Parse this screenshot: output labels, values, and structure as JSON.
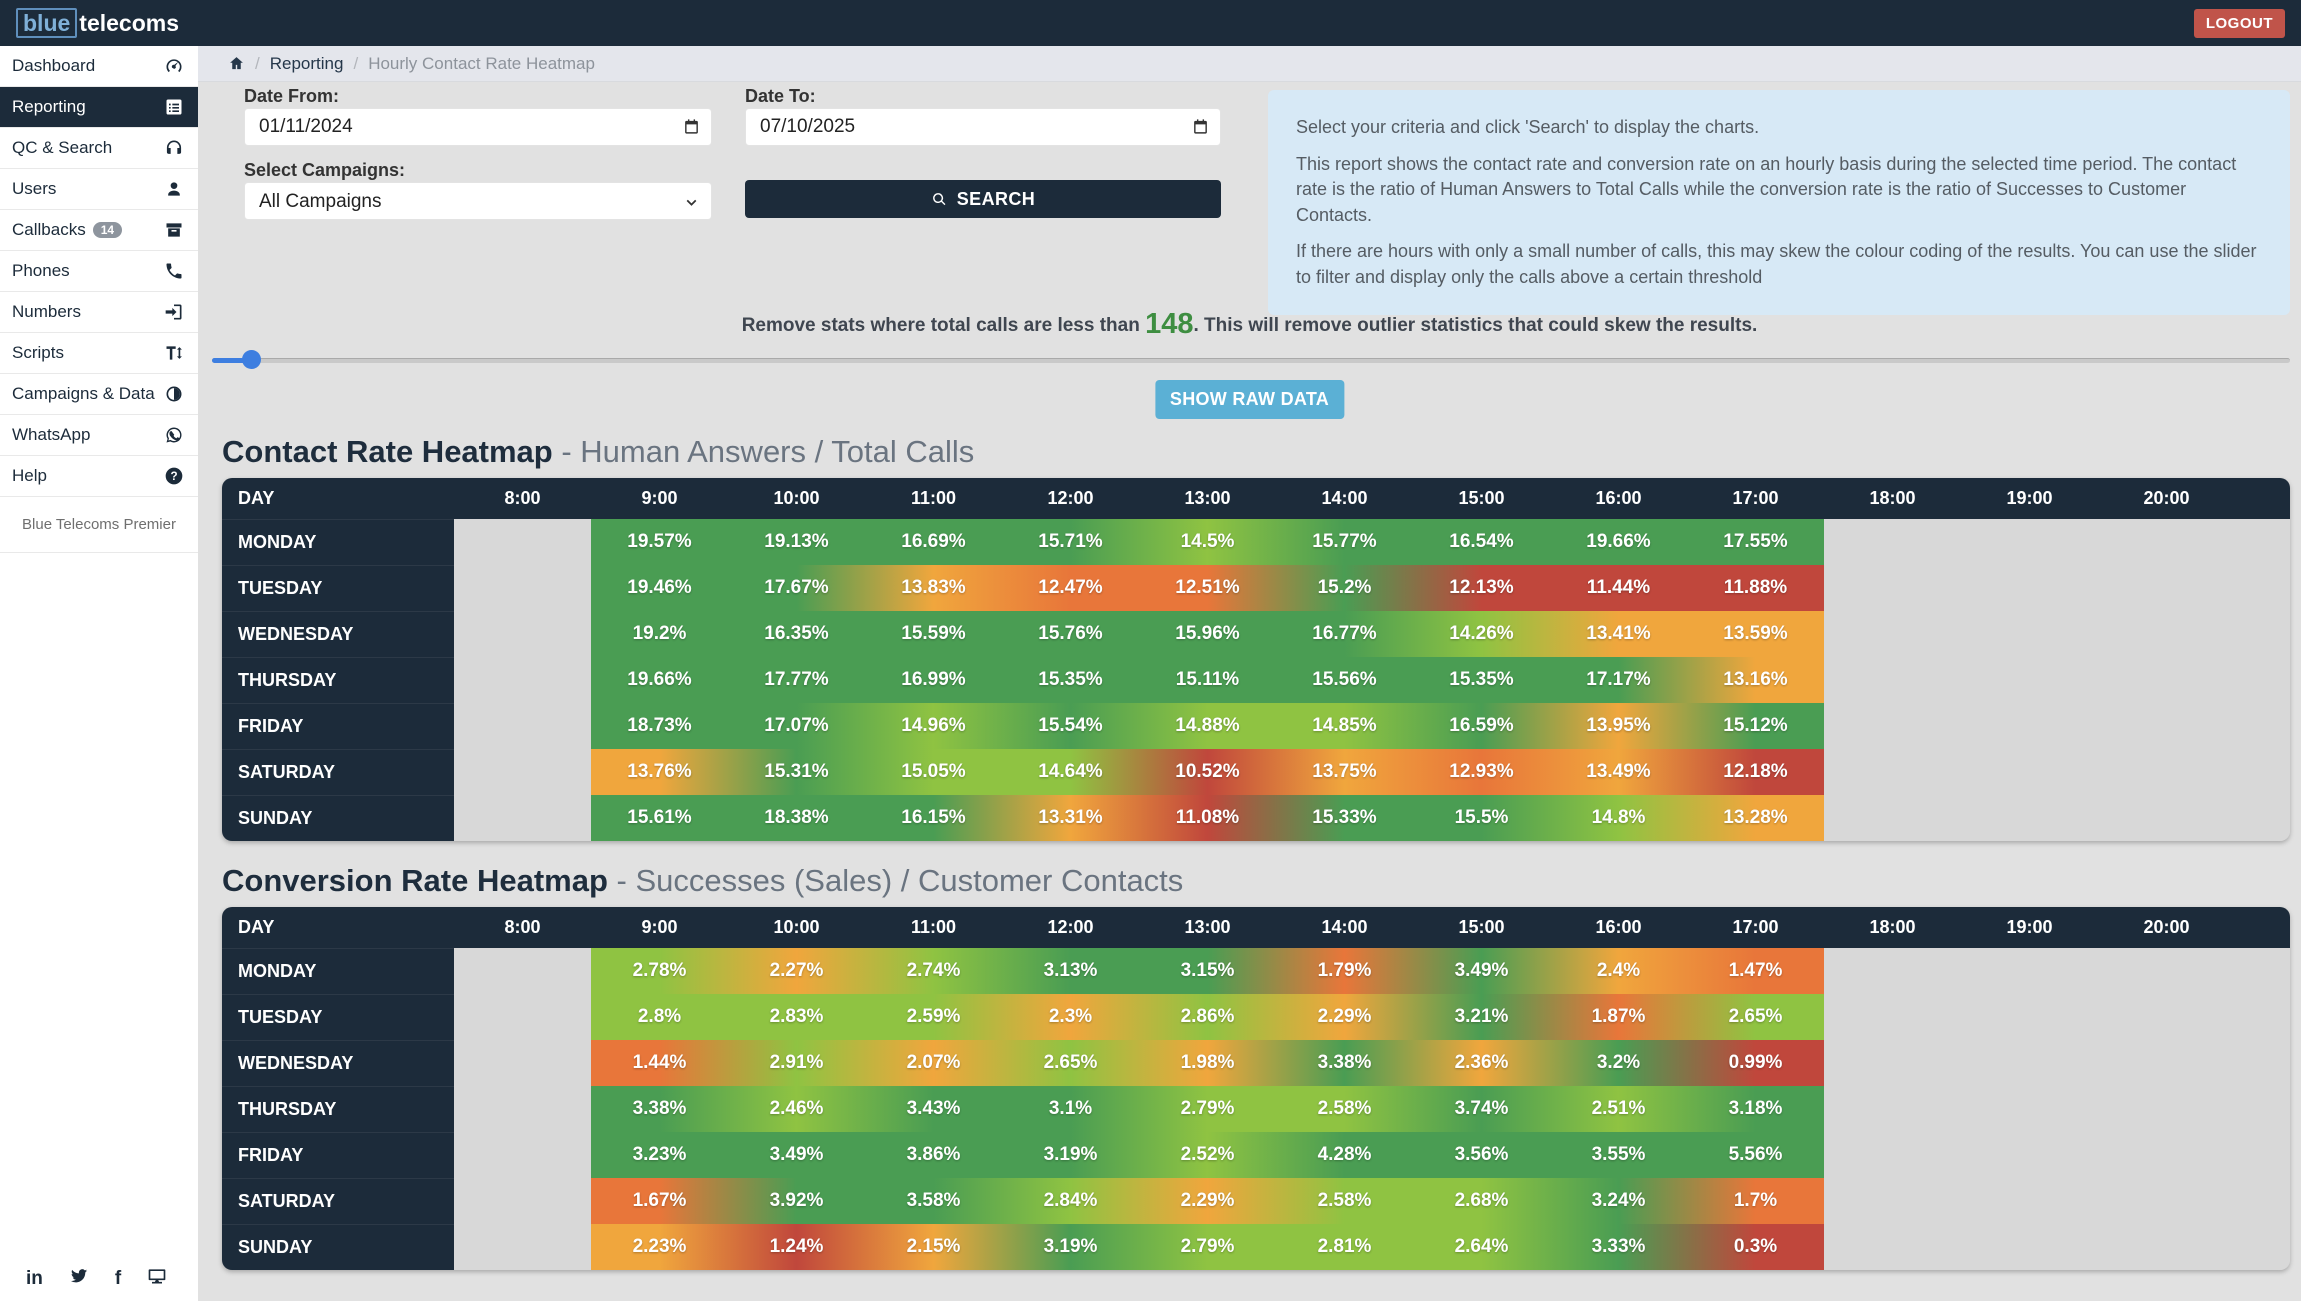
{
  "navbar": {
    "logo_blue": "blue",
    "logo_rest": "telecoms",
    "logout_label": "LOGOUT"
  },
  "sidebar": {
    "items": [
      {
        "label": "Dashboard",
        "icon": "speedometer"
      },
      {
        "label": "Reporting",
        "icon": "report-list",
        "active": true
      },
      {
        "label": "QC & Search",
        "icon": "headphones"
      },
      {
        "label": "Users",
        "icon": "user"
      },
      {
        "label": "Callbacks",
        "icon": "archive",
        "badge": "14"
      },
      {
        "label": "Phones",
        "icon": "phone"
      },
      {
        "label": "Numbers",
        "icon": "sign-in"
      },
      {
        "label": "Scripts",
        "icon": "text-height"
      },
      {
        "label": "Campaigns & Data",
        "icon": "contrast"
      },
      {
        "label": "WhatsApp",
        "icon": "whatsapp"
      },
      {
        "label": "Help",
        "icon": "question"
      }
    ],
    "footer_text": "Blue Telecoms Premier",
    "social": [
      "linkedin",
      "twitter",
      "facebook",
      "desktop"
    ]
  },
  "breadcrumb": {
    "link1": "Reporting",
    "current": "Hourly Contact Rate Heatmap"
  },
  "filters": {
    "date_from_label": "Date From:",
    "date_from_value": "01/11/2024",
    "date_to_label": "Date To:",
    "date_to_value": "07/10/2025",
    "campaigns_label": "Select Campaigns:",
    "campaigns_value": "All Campaigns",
    "search_label": "SEARCH"
  },
  "info_panel": {
    "paragraphs": [
      "Select your criteria and click 'Search' to display the charts.",
      "This report shows the contact rate and conversion rate on an hourly basis during the selected time period. The contact rate is the ratio of Human Answers to Total Calls while the conversion rate is the ratio of Successes to Customer Contacts.",
      "If there are hours with only a small number of calls, this may skew the colour coding of the results. You can use the slider to filter and display only the calls above a certain threshold"
    ]
  },
  "threshold": {
    "prefix": "Remove stats where total calls are less than ",
    "value": "148",
    "suffix": ". This will remove outlier statistics that could skew the results."
  },
  "raw_button_label": "SHOW RAW DATA",
  "colors": {
    "green": "#4a9d53",
    "lightgreen": "#8fc342",
    "amber": "#f0a63d",
    "orange": "#e8763a",
    "red": "#c0473c",
    "empty": "#d8d8d8",
    "navy": "#1c2b3a",
    "slider_blue": "#3d7ee0",
    "threshold_green": "#3e8e41",
    "logout_red": "#c0544a",
    "raw_button_blue": "#5bb0d5"
  },
  "heatmaps": [
    {
      "title": "Contact Rate Heatmap",
      "subtitle": " - Human Answers / Total Calls",
      "day_label": "DAY",
      "hours": [
        "8:00",
        "9:00",
        "10:00",
        "11:00",
        "12:00",
        "13:00",
        "14:00",
        "15:00",
        "16:00",
        "17:00",
        "18:00",
        "19:00",
        "20:00"
      ],
      "data_hours": [
        "9:00",
        "10:00",
        "11:00",
        "12:00",
        "13:00",
        "14:00",
        "15:00",
        "16:00",
        "17:00"
      ],
      "rows": [
        {
          "day": "MONDAY",
          "cells": [
            {
              "v": "19.57%",
              "c": "green"
            },
            {
              "v": "19.13%",
              "c": "green"
            },
            {
              "v": "16.69%",
              "c": "green"
            },
            {
              "v": "15.71%",
              "c": "green"
            },
            {
              "v": "14.5%",
              "c": "lightgreen"
            },
            {
              "v": "15.77%",
              "c": "green"
            },
            {
              "v": "16.54%",
              "c": "green"
            },
            {
              "v": "19.66%",
              "c": "green"
            },
            {
              "v": "17.55%",
              "c": "green"
            }
          ]
        },
        {
          "day": "TUESDAY",
          "cells": [
            {
              "v": "19.46%",
              "c": "green"
            },
            {
              "v": "17.67%",
              "c": "green"
            },
            {
              "v": "13.83%",
              "c": "amber"
            },
            {
              "v": "12.47%",
              "c": "orange"
            },
            {
              "v": "12.51%",
              "c": "orange"
            },
            {
              "v": "15.2%",
              "c": "green"
            },
            {
              "v": "12.13%",
              "c": "red"
            },
            {
              "v": "11.44%",
              "c": "red"
            },
            {
              "v": "11.88%",
              "c": "red"
            }
          ]
        },
        {
          "day": "WEDNESDAY",
          "cells": [
            {
              "v": "19.2%",
              "c": "green"
            },
            {
              "v": "16.35%",
              "c": "green"
            },
            {
              "v": "15.59%",
              "c": "green"
            },
            {
              "v": "15.76%",
              "c": "green"
            },
            {
              "v": "15.96%",
              "c": "green"
            },
            {
              "v": "16.77%",
              "c": "green"
            },
            {
              "v": "14.26%",
              "c": "lightgreen"
            },
            {
              "v": "13.41%",
              "c": "amber"
            },
            {
              "v": "13.59%",
              "c": "amber"
            }
          ]
        },
        {
          "day": "THURSDAY",
          "cells": [
            {
              "v": "19.66%",
              "c": "green"
            },
            {
              "v": "17.77%",
              "c": "green"
            },
            {
              "v": "16.99%",
              "c": "green"
            },
            {
              "v": "15.35%",
              "c": "green"
            },
            {
              "v": "15.11%",
              "c": "green"
            },
            {
              "v": "15.56%",
              "c": "green"
            },
            {
              "v": "15.35%",
              "c": "green"
            },
            {
              "v": "17.17%",
              "c": "green"
            },
            {
              "v": "13.16%",
              "c": "amber"
            }
          ]
        },
        {
          "day": "FRIDAY",
          "cells": [
            {
              "v": "18.73%",
              "c": "green"
            },
            {
              "v": "17.07%",
              "c": "green"
            },
            {
              "v": "14.96%",
              "c": "lightgreen"
            },
            {
              "v": "15.54%",
              "c": "green"
            },
            {
              "v": "14.88%",
              "c": "lightgreen"
            },
            {
              "v": "14.85%",
              "c": "lightgreen"
            },
            {
              "v": "16.59%",
              "c": "green"
            },
            {
              "v": "13.95%",
              "c": "amber"
            },
            {
              "v": "15.12%",
              "c": "green"
            }
          ]
        },
        {
          "day": "SATURDAY",
          "cells": [
            {
              "v": "13.76%",
              "c": "amber"
            },
            {
              "v": "15.31%",
              "c": "green"
            },
            {
              "v": "15.05%",
              "c": "lightgreen"
            },
            {
              "v": "14.64%",
              "c": "lightgreen"
            },
            {
              "v": "10.52%",
              "c": "red"
            },
            {
              "v": "13.75%",
              "c": "amber"
            },
            {
              "v": "12.93%",
              "c": "orange"
            },
            {
              "v": "13.49%",
              "c": "amber"
            },
            {
              "v": "12.18%",
              "c": "red"
            }
          ]
        },
        {
          "day": "SUNDAY",
          "cells": [
            {
              "v": "15.61%",
              "c": "green"
            },
            {
              "v": "18.38%",
              "c": "green"
            },
            {
              "v": "16.15%",
              "c": "green"
            },
            {
              "v": "13.31%",
              "c": "amber"
            },
            {
              "v": "11.08%",
              "c": "red"
            },
            {
              "v": "15.33%",
              "c": "green"
            },
            {
              "v": "15.5%",
              "c": "green"
            },
            {
              "v": "14.8%",
              "c": "lightgreen"
            },
            {
              "v": "13.28%",
              "c": "amber"
            }
          ]
        }
      ]
    },
    {
      "title": "Conversion Rate Heatmap",
      "subtitle": " - Successes (Sales) / Customer Contacts",
      "day_label": "DAY",
      "hours": [
        "8:00",
        "9:00",
        "10:00",
        "11:00",
        "12:00",
        "13:00",
        "14:00",
        "15:00",
        "16:00",
        "17:00",
        "18:00",
        "19:00",
        "20:00"
      ],
      "data_hours": [
        "9:00",
        "10:00",
        "11:00",
        "12:00",
        "13:00",
        "14:00",
        "15:00",
        "16:00",
        "17:00"
      ],
      "rows": [
        {
          "day": "MONDAY",
          "cells": [
            {
              "v": "2.78%",
              "c": "lightgreen"
            },
            {
              "v": "2.27%",
              "c": "amber"
            },
            {
              "v": "2.74%",
              "c": "lightgreen"
            },
            {
              "v": "3.13%",
              "c": "green"
            },
            {
              "v": "3.15%",
              "c": "green"
            },
            {
              "v": "1.79%",
              "c": "orange"
            },
            {
              "v": "3.49%",
              "c": "green"
            },
            {
              "v": "2.4%",
              "c": "amber"
            },
            {
              "v": "1.47%",
              "c": "orange"
            }
          ]
        },
        {
          "day": "TUESDAY",
          "cells": [
            {
              "v": "2.8%",
              "c": "lightgreen"
            },
            {
              "v": "2.83%",
              "c": "lightgreen"
            },
            {
              "v": "2.59%",
              "c": "lightgreen"
            },
            {
              "v": "2.3%",
              "c": "amber"
            },
            {
              "v": "2.86%",
              "c": "lightgreen"
            },
            {
              "v": "2.29%",
              "c": "amber"
            },
            {
              "v": "3.21%",
              "c": "green"
            },
            {
              "v": "1.87%",
              "c": "orange"
            },
            {
              "v": "2.65%",
              "c": "lightgreen"
            }
          ]
        },
        {
          "day": "WEDNESDAY",
          "cells": [
            {
              "v": "1.44%",
              "c": "orange"
            },
            {
              "v": "2.91%",
              "c": "lightgreen"
            },
            {
              "v": "2.07%",
              "c": "amber"
            },
            {
              "v": "2.65%",
              "c": "lightgreen"
            },
            {
              "v": "1.98%",
              "c": "amber"
            },
            {
              "v": "3.38%",
              "c": "green"
            },
            {
              "v": "2.36%",
              "c": "amber"
            },
            {
              "v": "3.2%",
              "c": "green"
            },
            {
              "v": "0.99%",
              "c": "red"
            }
          ]
        },
        {
          "day": "THURSDAY",
          "cells": [
            {
              "v": "3.38%",
              "c": "green"
            },
            {
              "v": "2.46%",
              "c": "lightgreen"
            },
            {
              "v": "3.43%",
              "c": "green"
            },
            {
              "v": "3.1%",
              "c": "green"
            },
            {
              "v": "2.79%",
              "c": "lightgreen"
            },
            {
              "v": "2.58%",
              "c": "lightgreen"
            },
            {
              "v": "3.74%",
              "c": "green"
            },
            {
              "v": "2.51%",
              "c": "lightgreen"
            },
            {
              "v": "3.18%",
              "c": "green"
            }
          ]
        },
        {
          "day": "FRIDAY",
          "cells": [
            {
              "v": "3.23%",
              "c": "green"
            },
            {
              "v": "3.49%",
              "c": "green"
            },
            {
              "v": "3.86%",
              "c": "green"
            },
            {
              "v": "3.19%",
              "c": "green"
            },
            {
              "v": "2.52%",
              "c": "lightgreen"
            },
            {
              "v": "4.28%",
              "c": "green"
            },
            {
              "v": "3.56%",
              "c": "green"
            },
            {
              "v": "3.55%",
              "c": "green"
            },
            {
              "v": "5.56%",
              "c": "green"
            }
          ]
        },
        {
          "day": "SATURDAY",
          "cells": [
            {
              "v": "1.67%",
              "c": "orange"
            },
            {
              "v": "3.92%",
              "c": "green"
            },
            {
              "v": "3.58%",
              "c": "green"
            },
            {
              "v": "2.84%",
              "c": "lightgreen"
            },
            {
              "v": "2.29%",
              "c": "amber"
            },
            {
              "v": "2.58%",
              "c": "lightgreen"
            },
            {
              "v": "2.68%",
              "c": "lightgreen"
            },
            {
              "v": "3.24%",
              "c": "green"
            },
            {
              "v": "1.7%",
              "c": "orange"
            }
          ]
        },
        {
          "day": "SUNDAY",
          "cells": [
            {
              "v": "2.23%",
              "c": "amber"
            },
            {
              "v": "1.24%",
              "c": "red"
            },
            {
              "v": "2.15%",
              "c": "amber"
            },
            {
              "v": "3.19%",
              "c": "green"
            },
            {
              "v": "2.79%",
              "c": "lightgreen"
            },
            {
              "v": "2.81%",
              "c": "lightgreen"
            },
            {
              "v": "2.64%",
              "c": "lightgreen"
            },
            {
              "v": "3.33%",
              "c": "green"
            },
            {
              "v": "0.3%",
              "c": "red"
            }
          ]
        }
      ]
    }
  ]
}
